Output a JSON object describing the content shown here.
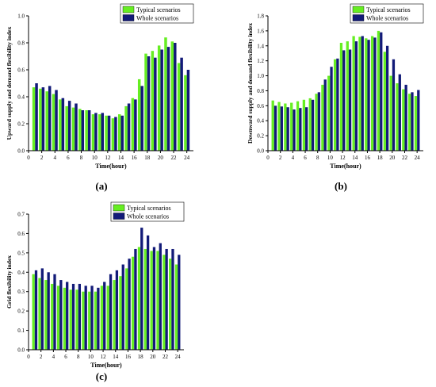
{
  "colors": {
    "typical": "#66ee22",
    "whole": "#121a78",
    "axis": "#000000",
    "background": "#ffffff"
  },
  "charts": [
    {
      "panel_label": "(a)",
      "chart_data": {
        "type": "bar",
        "xlabel": "Time(hour)",
        "ylabel": "Upward supply and demand flexibility index",
        "xlim": [
          0,
          25
        ],
        "ylim": [
          0,
          1.0
        ],
        "xticks": [
          "0",
          "2",
          "4",
          "6",
          "8",
          "10",
          "12",
          "14",
          "16",
          "18",
          "20",
          "22",
          "24"
        ],
        "yticks": [
          "0.0",
          "0.2",
          "0.4",
          "0.6",
          "0.8",
          "1.0"
        ],
        "legend_position": "top-right",
        "categories": [
          1,
          2,
          3,
          4,
          5,
          6,
          7,
          8,
          9,
          10,
          11,
          12,
          13,
          14,
          15,
          16,
          17,
          18,
          19,
          20,
          21,
          22,
          23,
          24
        ],
        "series": [
          {
            "name": "Typical scenarios",
            "color_key": "typical",
            "values": [
              0.47,
              0.46,
              0.44,
              0.42,
              0.38,
              0.33,
              0.32,
              0.31,
              0.3,
              0.27,
              0.27,
              0.26,
              0.24,
              0.27,
              0.33,
              0.39,
              0.53,
              0.72,
              0.74,
              0.78,
              0.84,
              0.81,
              0.65,
              0.56
            ]
          },
          {
            "name": "Whole scenarios",
            "color_key": "whole",
            "values": [
              0.5,
              0.47,
              0.48,
              0.45,
              0.39,
              0.37,
              0.35,
              0.3,
              0.3,
              0.28,
              0.28,
              0.26,
              0.25,
              0.26,
              0.35,
              0.38,
              0.48,
              0.7,
              0.69,
              0.75,
              0.77,
              0.8,
              0.69,
              0.6
            ]
          }
        ]
      }
    },
    {
      "panel_label": "(b)",
      "chart_data": {
        "type": "bar",
        "xlabel": "Time(hour)",
        "ylabel": "Downward supply and demand flexibility index",
        "xlim": [
          0,
          25
        ],
        "ylim": [
          0,
          1.8
        ],
        "xticks": [
          "0",
          "2",
          "4",
          "6",
          "8",
          "10",
          "12",
          "14",
          "16",
          "18",
          "20",
          "22",
          "24"
        ],
        "yticks": [
          "0.0",
          "0.2",
          "0.4",
          "0.6",
          "0.8",
          "1.0",
          "1.2",
          "1.4",
          "1.6",
          "1.8"
        ],
        "legend_position": "top-right",
        "categories": [
          1,
          2,
          3,
          4,
          5,
          6,
          7,
          8,
          9,
          10,
          11,
          12,
          13,
          14,
          15,
          16,
          17,
          18,
          19,
          20,
          21,
          22,
          23,
          24
        ],
        "series": [
          {
            "name": "Typical scenarios",
            "color_key": "typical",
            "values": [
              0.67,
              0.65,
              0.63,
              0.64,
              0.66,
              0.68,
              0.7,
              0.76,
              0.88,
              1.0,
              1.22,
              1.44,
              1.46,
              1.53,
              1.52,
              1.5,
              1.53,
              1.6,
              1.32,
              1.0,
              0.9,
              0.82,
              0.76,
              0.73
            ]
          },
          {
            "name": "Whole scenarios",
            "color_key": "whole",
            "values": [
              0.6,
              0.59,
              0.58,
              0.55,
              0.57,
              0.58,
              0.68,
              0.78,
              0.95,
              1.12,
              1.23,
              1.34,
              1.35,
              1.46,
              1.53,
              1.48,
              1.51,
              1.58,
              1.4,
              1.22,
              1.02,
              0.88,
              0.78,
              0.81
            ]
          }
        ]
      }
    },
    {
      "panel_label": "(c)",
      "chart_data": {
        "type": "bar",
        "xlabel": "Time(hour)",
        "ylabel": "Grid flexibility index",
        "xlim": [
          0,
          25
        ],
        "ylim": [
          0,
          0.7
        ],
        "xticks": [
          "0",
          "2",
          "4",
          "6",
          "8",
          "10",
          "12",
          "14",
          "16",
          "18",
          "20",
          "22",
          "24"
        ],
        "yticks": [
          "0.0",
          "0.1",
          "0.2",
          "0.3",
          "0.4",
          "0.5",
          "0.6",
          "0.7"
        ],
        "legend_position": "top-right",
        "categories": [
          1,
          2,
          3,
          4,
          5,
          6,
          7,
          8,
          9,
          10,
          11,
          12,
          13,
          14,
          15,
          16,
          17,
          18,
          19,
          20,
          21,
          22,
          23,
          24
        ],
        "series": [
          {
            "name": "Typical scenarios",
            "color_key": "typical",
            "values": [
              0.39,
              0.37,
              0.36,
              0.34,
              0.33,
              0.32,
              0.31,
              0.31,
              0.3,
              0.3,
              0.3,
              0.33,
              0.33,
              0.36,
              0.38,
              0.42,
              0.48,
              0.53,
              0.52,
              0.51,
              0.51,
              0.49,
              0.47,
              0.44
            ]
          },
          {
            "name": "Whole scenarios",
            "color_key": "whole",
            "values": [
              0.41,
              0.42,
              0.4,
              0.39,
              0.36,
              0.35,
              0.34,
              0.34,
              0.33,
              0.33,
              0.32,
              0.35,
              0.39,
              0.41,
              0.44,
              0.47,
              0.52,
              0.63,
              0.59,
              0.53,
              0.55,
              0.52,
              0.52,
              0.49
            ]
          }
        ]
      }
    }
  ]
}
